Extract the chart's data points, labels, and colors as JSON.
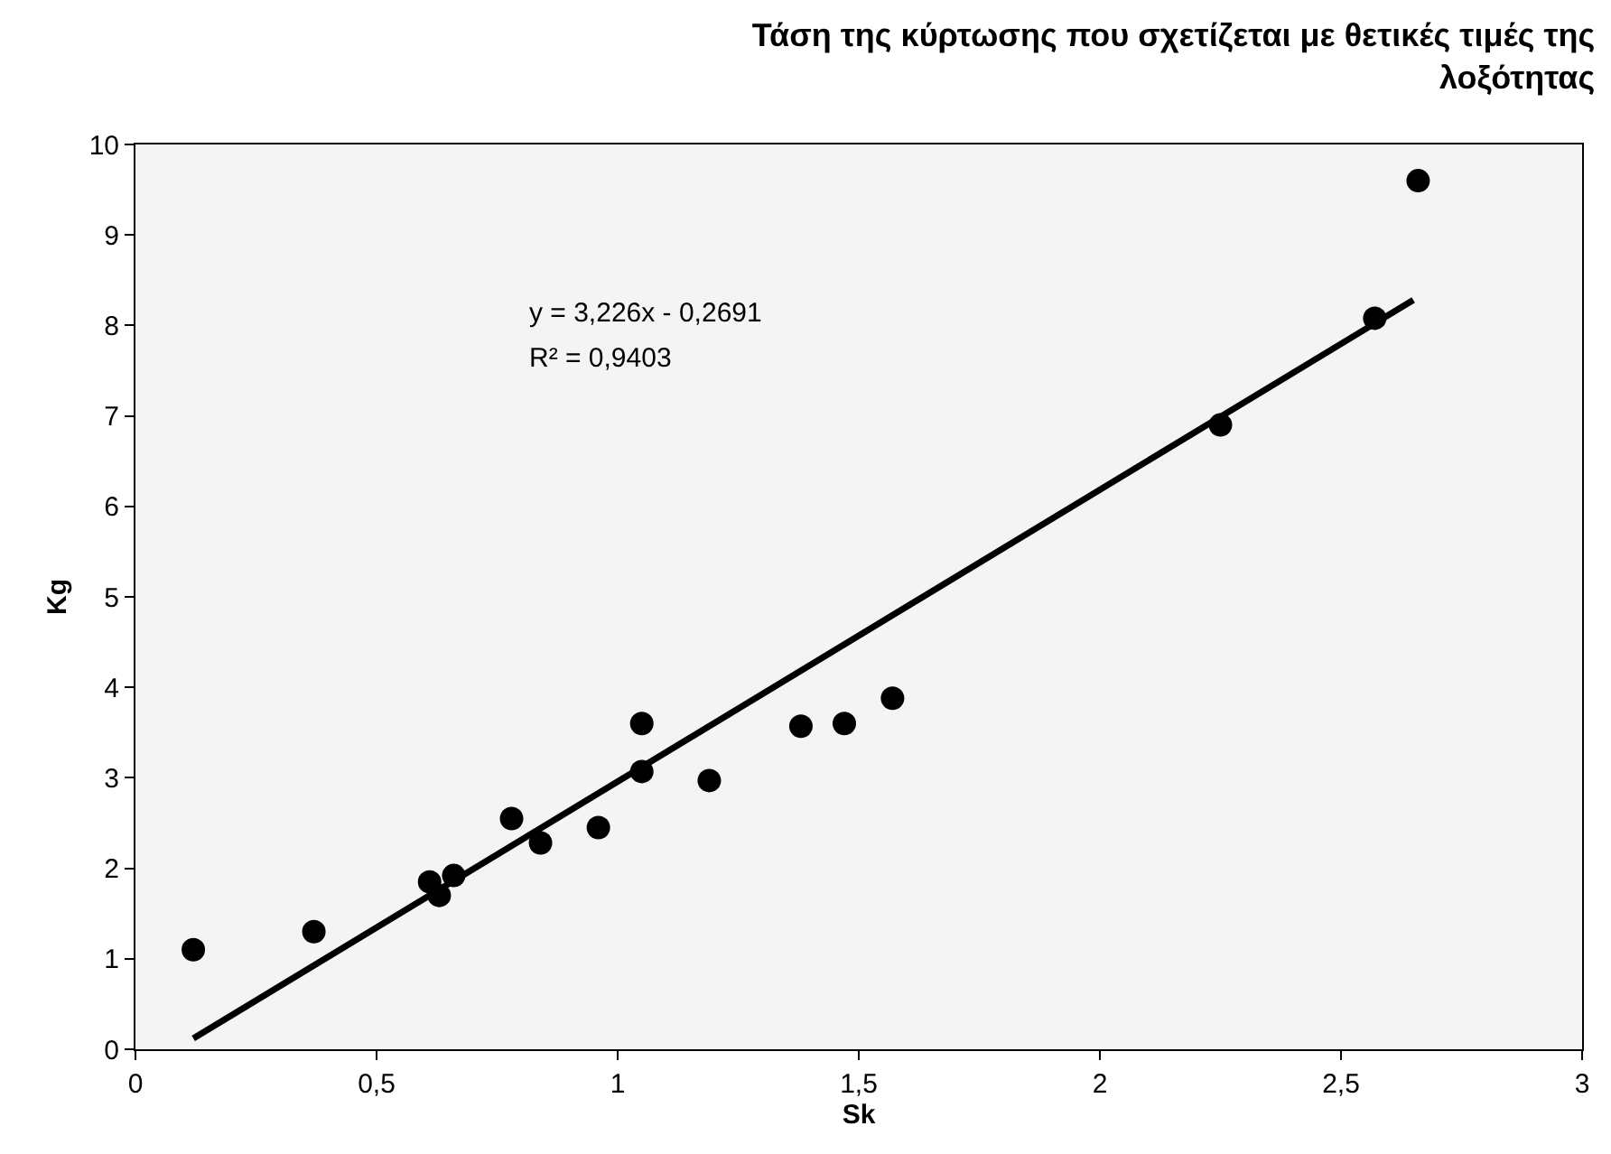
{
  "chart_data": {
    "type": "scatter",
    "title": "Τάση της κύρτωσης που σχετίζεται με θετικές τιμές της λοξότητας",
    "xlabel": "Sk",
    "ylabel": "Kg",
    "series": [
      {
        "color": "#000000",
        "marker": "circle",
        "x": [
          0.12,
          0.37,
          0.61,
          0.63,
          0.66,
          0.78,
          0.83,
          0.84,
          0.96,
          1.05,
          1.05,
          1.19,
          1.38,
          1.47,
          1.57,
          2.25,
          2.57,
          2.66
        ],
        "values": [
          1.1,
          1.3,
          1.85,
          1.7,
          1.92,
          2.55,
          null,
          2.28,
          2.45,
          3.6,
          3.07,
          2.97,
          3.57,
          3.6,
          3.88,
          6.9,
          8.08,
          9.6
        ]
      },
      {
        "type": "line",
        "color": "#000000",
        "marker": "none",
        "line_style": "solid",
        "x": [
          0.12,
          2.65
        ],
        "values": [
          0.12,
          8.28
        ]
      }
    ],
    "annotations": [
      "y = 3,226x - 0,2691",
      "R² = 0,9403"
    ],
    "xlim": [
      0,
      3
    ],
    "ylim": [
      0,
      10
    ],
    "xticks": [
      0,
      {
        "value": 0.5,
        "label": "0,5"
      },
      1,
      {
        "value": 1.5,
        "label": "1,5"
      },
      2,
      {
        "value": 2.5,
        "label": "2,5"
      },
      3
    ],
    "yticks": [
      0,
      1,
      2,
      3,
      4,
      5,
      6,
      7,
      8,
      9,
      10
    ],
    "grid": false,
    "legend": false
  }
}
